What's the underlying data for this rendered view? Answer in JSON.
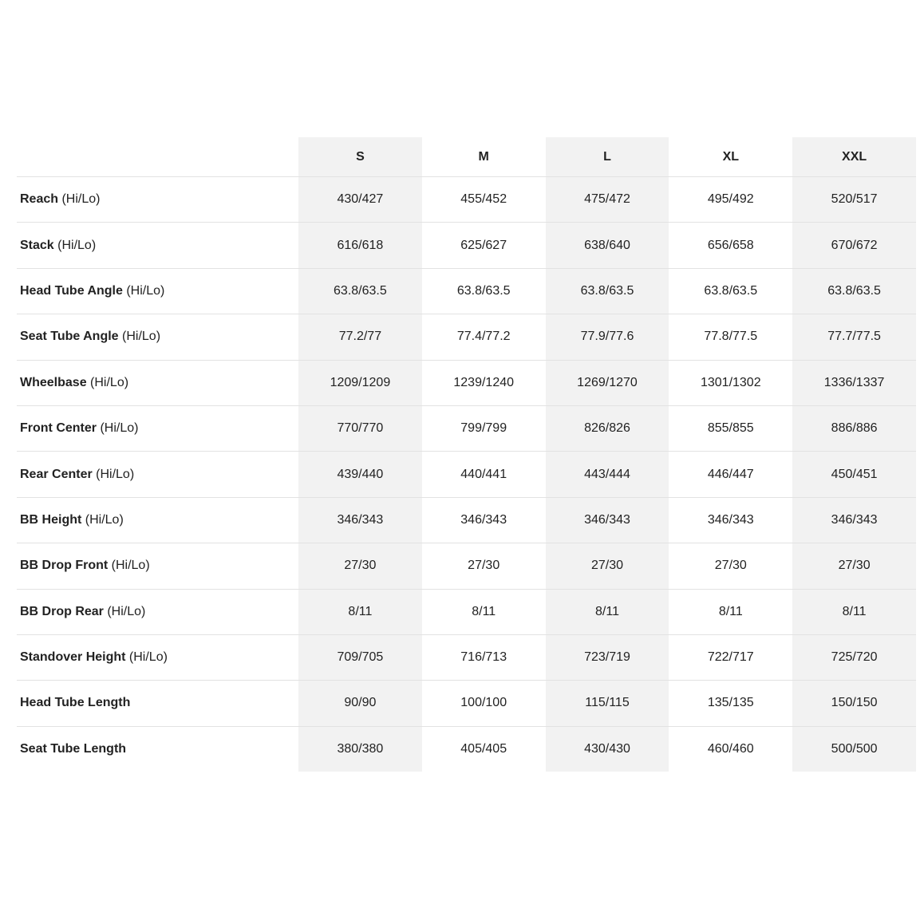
{
  "table": {
    "columns": [
      "S",
      "M",
      "L",
      "XL",
      "XXL"
    ],
    "rows": [
      {
        "label": "Reach",
        "suffix": " (Hi/Lo)",
        "values": [
          "430/427",
          "455/452",
          "475/472",
          "495/492",
          "520/517"
        ]
      },
      {
        "label": "Stack",
        "suffix": " (Hi/Lo)",
        "values": [
          "616/618",
          "625/627",
          "638/640",
          "656/658",
          "670/672"
        ]
      },
      {
        "label": "Head Tube Angle",
        "suffix": " (Hi/Lo)",
        "values": [
          "63.8/63.5",
          "63.8/63.5",
          "63.8/63.5",
          "63.8/63.5",
          "63.8/63.5"
        ]
      },
      {
        "label": "Seat Tube Angle",
        "suffix": " (Hi/Lo)",
        "values": [
          "77.2/77",
          "77.4/77.2",
          "77.9/77.6",
          "77.8/77.5",
          "77.7/77.5"
        ]
      },
      {
        "label": "Wheelbase",
        "suffix": " (Hi/Lo)",
        "values": [
          "1209/1209",
          "1239/1240",
          "1269/1270",
          "1301/1302",
          "1336/1337"
        ]
      },
      {
        "label": "Front Center",
        "suffix": " (Hi/Lo)",
        "values": [
          "770/770",
          "799/799",
          "826/826",
          "855/855",
          "886/886"
        ]
      },
      {
        "label": "Rear Center",
        "suffix": " (Hi/Lo)",
        "values": [
          "439/440",
          "440/441",
          "443/444",
          "446/447",
          "450/451"
        ]
      },
      {
        "label": "BB Height",
        "suffix": " (Hi/Lo)",
        "values": [
          "346/343",
          "346/343",
          "346/343",
          "346/343",
          "346/343"
        ]
      },
      {
        "label": "BB Drop Front",
        "suffix": " (Hi/Lo)",
        "values": [
          "27/30",
          "27/30",
          "27/30",
          "27/30",
          "27/30"
        ]
      },
      {
        "label": "BB Drop Rear",
        "suffix": " (Hi/Lo)",
        "values": [
          "8/11",
          "8/11",
          "8/11",
          "8/11",
          "8/11"
        ]
      },
      {
        "label": "Standover Height",
        "suffix": " (Hi/Lo)",
        "values": [
          "709/705",
          "716/713",
          "723/719",
          "722/717",
          "725/720"
        ]
      },
      {
        "label": "Head Tube Length",
        "suffix": "",
        "values": [
          "90/90",
          "100/100",
          "115/115",
          "135/135",
          "150/150"
        ]
      },
      {
        "label": "Seat Tube Length",
        "suffix": "",
        "values": [
          "380/380",
          "405/405",
          "430/430",
          "460/460",
          "500/500"
        ]
      }
    ]
  },
  "colors": {
    "shaded_column": "#f2f2f2",
    "divider": "#e2e2e2",
    "text": "#222222"
  }
}
